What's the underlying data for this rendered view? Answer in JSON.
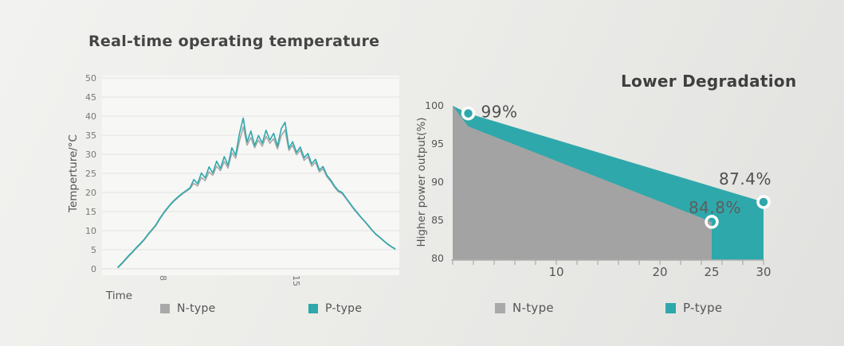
{
  "colors": {
    "N-type": "#a9a9a9",
    "P-type": "#2fa8ab",
    "n_area": "#a3a3a3",
    "p_area": "#2fa8ab",
    "grid": "#e3e3e1",
    "panel": "#f7f7f6",
    "axis": "#b0b0ae",
    "tick_text": "#777777",
    "label_text": "#555555",
    "annotation_text": "#4f4f4f"
  },
  "chart_data": [
    {
      "type": "line",
      "title": "Real-time operating temperature",
      "ylabel": "Temperture/°C",
      "xlabel": "Time",
      "ylim": [
        0,
        50
      ],
      "xlim_hours": [
        4.8,
        20.6
      ],
      "grid": "horizontal",
      "yticks": [
        50,
        45,
        40,
        35,
        30,
        25,
        20,
        15,
        10,
        5,
        0
      ],
      "xticks": [
        {
          "value": 8,
          "label": "8"
        },
        {
          "value": 15,
          "label": "15"
        }
      ],
      "x": [
        5.6,
        5.8,
        6.0,
        6.2,
        6.4,
        6.6,
        6.8,
        7.0,
        7.2,
        7.4,
        7.6,
        7.8,
        8.0,
        8.2,
        8.4,
        8.6,
        8.8,
        9.0,
        9.2,
        9.4,
        9.6,
        9.8,
        10.0,
        10.2,
        10.4,
        10.6,
        10.8,
        11.0,
        11.2,
        11.4,
        11.6,
        11.8,
        12.0,
        12.2,
        12.4,
        12.6,
        12.8,
        13.0,
        13.2,
        13.4,
        13.6,
        13.8,
        14.0,
        14.2,
        14.4,
        14.6,
        14.8,
        15.0,
        15.2,
        15.4,
        15.6,
        15.8,
        16.0,
        16.2,
        16.4,
        16.6,
        16.8,
        17.0,
        17.2,
        17.4,
        17.6,
        17.8,
        18.0,
        18.2,
        18.4,
        18.6,
        18.8,
        19.0,
        19.2,
        19.4,
        19.6,
        19.8,
        20.0,
        20.2
      ],
      "series": [
        {
          "name": "N-type",
          "values": [
            0.2,
            1.2,
            2.3,
            3.4,
            4.4,
            5.5,
            6.5,
            7.6,
            8.9,
            10.1,
            11.3,
            12.9,
            14.4,
            15.7,
            16.9,
            17.9,
            18.8,
            19.6,
            20.3,
            21.0,
            22.4,
            21.7,
            23.9,
            23.1,
            25.4,
            24.5,
            26.9,
            25.7,
            28.1,
            26.4,
            30.4,
            29.0,
            33.4,
            37.2,
            32.4,
            34.4,
            31.7,
            33.7,
            32.1,
            34.7,
            32.9,
            34.1,
            31.4,
            34.9,
            36.4,
            31.0,
            32.4,
            29.9,
            31.1,
            28.4,
            29.4,
            26.9,
            27.9,
            25.4,
            26.2,
            24.1,
            22.9,
            21.4,
            20.2,
            19.7,
            18.4,
            17.1,
            15.7,
            14.5,
            13.4,
            12.3,
            11.1,
            9.9,
            8.9,
            8.1,
            7.2,
            6.4,
            5.7,
            5.1
          ]
        },
        {
          "name": "P-type",
          "values": [
            0.4,
            1.4,
            2.5,
            3.6,
            4.6,
            5.7,
            6.7,
            7.8,
            9.1,
            10.3,
            11.5,
            13.1,
            14.6,
            15.9,
            17.1,
            18.1,
            19.0,
            19.8,
            20.5,
            21.2,
            23.4,
            22.3,
            25.1,
            23.8,
            26.7,
            25.1,
            28.2,
            26.3,
            29.4,
            27.1,
            31.7,
            29.7,
            35.4,
            39.5,
            33.2,
            36.1,
            32.3,
            34.9,
            32.9,
            36.3,
            33.7,
            35.5,
            32.1,
            36.7,
            38.4,
            31.6,
            33.3,
            30.5,
            31.9,
            29.1,
            30.2,
            27.5,
            28.7,
            25.9,
            26.8,
            24.5,
            23.3,
            21.7,
            20.5,
            20.0,
            18.6,
            17.3,
            15.9,
            14.7,
            13.5,
            12.4,
            11.2,
            10.0,
            9.0,
            8.2,
            7.3,
            6.5,
            5.8,
            5.2
          ]
        }
      ]
    },
    {
      "type": "area",
      "title": "Lower Degradation",
      "ylabel": "Higher power output(%)",
      "ylim": [
        80,
        100
      ],
      "xlim_years": [
        0,
        30
      ],
      "grid": "off",
      "yticks": [
        100,
        95,
        90,
        85,
        80
      ],
      "xticks": [
        {
          "value": 10,
          "label": "10"
        },
        {
          "value": 20,
          "label": "20"
        },
        {
          "value": 25,
          "label": "25"
        },
        {
          "value": 30,
          "label": "30"
        }
      ],
      "series": [
        {
          "name": "N-type",
          "points": [
            [
              0,
              100
            ],
            [
              1.5,
              97.3
            ],
            [
              25,
              84.8
            ]
          ]
        },
        {
          "name": "P-type",
          "points": [
            [
              0,
              100
            ],
            [
              1.5,
              99
            ],
            [
              30,
              87.4
            ]
          ]
        }
      ],
      "annotations": [
        {
          "label": "99%",
          "x": 1.5,
          "y": 99,
          "series": "P-type",
          "marker_style": "filled"
        },
        {
          "label": "87.4%",
          "x": 30,
          "y": 87.4,
          "series": "P-type",
          "marker_style": "filled"
        },
        {
          "label": "84.8%",
          "x": 25,
          "y": 84.8,
          "series": "N-type",
          "marker_style": "hollow"
        }
      ]
    }
  ]
}
